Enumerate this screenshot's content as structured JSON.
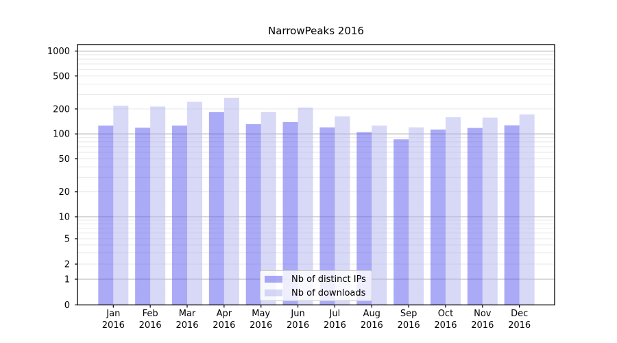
{
  "figure_title": "NarrowPeaks 2016",
  "chart_data": {
    "type": "bar",
    "title": "NarrowPeaks 2016",
    "categories": [
      "Jan",
      "Feb",
      "Mar",
      "Apr",
      "May",
      "Jun",
      "Jul",
      "Aug",
      "Sep",
      "Oct",
      "Nov",
      "Dec"
    ],
    "x_tick_second_line": "2016",
    "series": [
      {
        "name": "Nb of distinct IPs",
        "color": "#5555ee",
        "fill_opacity": 0.5,
        "values": [
          126,
          119,
          126,
          184,
          131,
          139,
          120,
          105,
          86,
          113,
          118,
          127
        ]
      },
      {
        "name": "Nb of downloads",
        "color": "#b1b1ef",
        "fill_opacity": 0.5,
        "values": [
          219,
          214,
          244,
          272,
          184,
          208,
          163,
          126,
          120,
          159,
          157,
          172
        ]
      }
    ],
    "yscale": "symlog",
    "yticks": [
      0,
      1,
      2,
      5,
      10,
      20,
      50,
      100,
      200,
      500,
      1000
    ],
    "ylim": [
      0,
      1200
    ],
    "grid": "major-and-minor",
    "legend_location": "inside-bottom-center"
  },
  "colors": {
    "major_grid": "#b2b2b2",
    "minor_grid": "#e7e7e7",
    "axis_frame": "#000000",
    "background": "#ffffff"
  }
}
